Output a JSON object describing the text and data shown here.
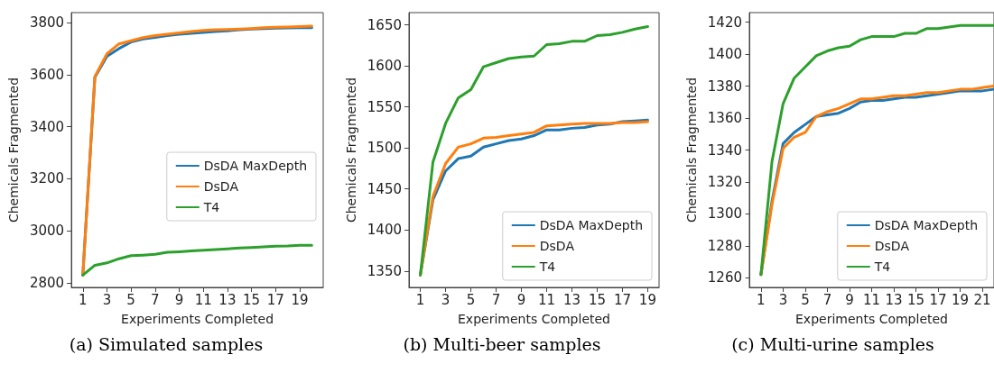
{
  "chart_data": [
    {
      "type": "line",
      "xlabel": "Experiments Completed",
      "ylabel": "Chemicals Fragmented",
      "annotations": [
        "(a) Simulated samples"
      ],
      "x": [
        1,
        2,
        3,
        4,
        5,
        6,
        7,
        8,
        9,
        10,
        11,
        12,
        13,
        14,
        15,
        16,
        17,
        18,
        19,
        20
      ],
      "xlim": [
        0.05,
        20.95
      ],
      "xticks": [
        1,
        3,
        5,
        7,
        9,
        11,
        13,
        15,
        17,
        19
      ],
      "ylim": [
        2783,
        3838
      ],
      "yticks": [
        2800,
        3000,
        3200,
        3400,
        3600,
        3800
      ],
      "grid": false,
      "legend": "right",
      "line_style": "solid",
      "marker": "none",
      "series": [
        {
          "name": "DsDA MaxDepth",
          "color": "#1f77b4",
          "values": [
            2830,
            3590,
            3670,
            3700,
            3725,
            3737,
            3743,
            3750,
            3755,
            3758,
            3762,
            3765,
            3768,
            3772,
            3775,
            3777,
            3778,
            3779,
            3780,
            3780
          ]
        },
        {
          "name": "DsDA",
          "color": "#ff7f0e",
          "values": [
            2830,
            3593,
            3680,
            3718,
            3730,
            3742,
            3750,
            3755,
            3760,
            3765,
            3770,
            3772,
            3773,
            3775,
            3777,
            3780,
            3782,
            3783,
            3784,
            3786
          ]
        },
        {
          "name": "T4",
          "color": "#2ca02c",
          "values": [
            2830,
            2868,
            2877,
            2893,
            2905,
            2907,
            2910,
            2918,
            2920,
            2923,
            2926,
            2928,
            2931,
            2934,
            2936,
            2939,
            2941,
            2942,
            2945,
            2945
          ]
        }
      ]
    },
    {
      "type": "line",
      "xlabel": "Experiments Completed",
      "ylabel": "Chemicals Fragmented",
      "annotations": [
        "(b) Multi-beer samples"
      ],
      "x": [
        1,
        2,
        3,
        4,
        5,
        6,
        7,
        8,
        9,
        10,
        11,
        12,
        13,
        14,
        15,
        16,
        17,
        18,
        19
      ],
      "xlim": [
        0.1,
        19.9
      ],
      "xticks": [
        1,
        3,
        5,
        7,
        9,
        11,
        13,
        15,
        17,
        19
      ],
      "ylim": [
        1330,
        1665
      ],
      "yticks": [
        1350,
        1400,
        1450,
        1500,
        1550,
        1600,
        1650
      ],
      "grid": false,
      "legend": "bottom right",
      "line_style": "solid",
      "marker": "none",
      "series": [
        {
          "name": "DsDA MaxDepth",
          "color": "#1f77b4",
          "values": [
            1345,
            1437,
            1472,
            1487,
            1490,
            1501,
            1505,
            1509,
            1511,
            1515,
            1522,
            1522,
            1524,
            1525,
            1528,
            1529,
            1532,
            1533,
            1534
          ]
        },
        {
          "name": "DsDA",
          "color": "#ff7f0e",
          "values": [
            1345,
            1441,
            1481,
            1501,
            1505,
            1512,
            1513,
            1515,
            1517,
            1519,
            1527,
            1528,
            1529,
            1530,
            1530,
            1530,
            1531,
            1531,
            1532
          ]
        },
        {
          "name": "T4",
          "color": "#2ca02c",
          "values": [
            1345,
            1483,
            1530,
            1561,
            1571,
            1599,
            1604,
            1609,
            1611,
            1612,
            1626,
            1627,
            1630,
            1630,
            1637,
            1638,
            1641,
            1645,
            1648
          ]
        }
      ]
    },
    {
      "type": "line",
      "xlabel": "Experiments Completed",
      "ylabel": "Chemicals Fragmented",
      "annotations": [
        "(c) Multi-urine samples"
      ],
      "x": [
        1,
        2,
        3,
        4,
        5,
        6,
        7,
        8,
        9,
        10,
        11,
        12,
        13,
        14,
        15,
        16,
        17,
        18,
        19,
        20,
        21,
        22
      ],
      "xlim": [
        -0.05,
        22.05
      ],
      "xticks": [
        1,
        3,
        5,
        7,
        9,
        11,
        13,
        15,
        17,
        19,
        21
      ],
      "ylim": [
        1254,
        1426
      ],
      "yticks": [
        1260,
        1280,
        1300,
        1320,
        1340,
        1360,
        1380,
        1400,
        1420
      ],
      "grid": false,
      "legend": "bottom right",
      "line_style": "solid",
      "marker": "none",
      "series": [
        {
          "name": "DsDA MaxDepth",
          "color": "#1f77b4",
          "values": [
            1262,
            1308,
            1344,
            1351,
            1356,
            1361,
            1362,
            1363,
            1366,
            1370,
            1371,
            1371,
            1372,
            1373,
            1373,
            1374,
            1375,
            1376,
            1377,
            1377,
            1377,
            1378
          ]
        },
        {
          "name": "DsDA",
          "color": "#ff7f0e",
          "values": [
            1262,
            1306,
            1341,
            1348,
            1351,
            1361,
            1364,
            1366,
            1369,
            1372,
            1372,
            1373,
            1374,
            1374,
            1375,
            1376,
            1376,
            1377,
            1378,
            1378,
            1379,
            1380
          ]
        },
        {
          "name": "T4",
          "color": "#2ca02c",
          "values": [
            1262,
            1333,
            1369,
            1385,
            1392,
            1399,
            1402,
            1404,
            1405,
            1409,
            1411,
            1411,
            1411,
            1413,
            1413,
            1416,
            1416,
            1417,
            1418,
            1418,
            1418,
            1418
          ]
        }
      ]
    }
  ]
}
